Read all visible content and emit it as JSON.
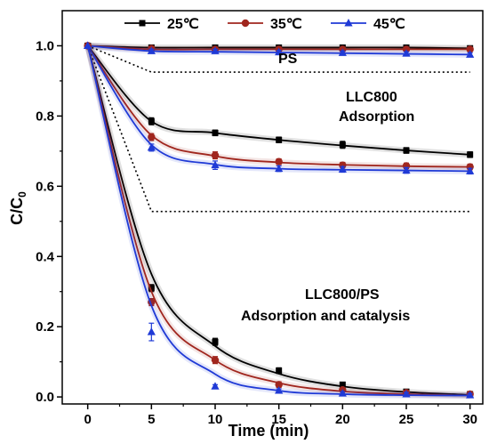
{
  "chart_data": {
    "type": "line",
    "xlabel": "Time (min)",
    "ylabel": "C/C",
    "ylabel_sub": "0",
    "xlim": [
      -2,
      31
    ],
    "ylim": [
      -0.02,
      1.1
    ],
    "xticks": [
      0,
      5,
      10,
      15,
      20,
      25,
      30
    ],
    "yticks": [
      0.0,
      0.2,
      0.4,
      0.6,
      0.8,
      1.0
    ],
    "xtick_labels": [
      "0",
      "5",
      "10",
      "15",
      "20",
      "25",
      "30"
    ],
    "ytick_labels": [
      "0.0",
      "0.2",
      "0.4",
      "0.6",
      "0.8",
      "1.0"
    ],
    "legend_position": "top",
    "annotations": {
      "ps": "PS",
      "adsorption_line1": "LLC800",
      "adsorption_line2": "Adsorption",
      "catalysis_line1": "LLC800/PS",
      "catalysis_line2": "Adsorption and catalysis"
    },
    "x": [
      0,
      5,
      10,
      15,
      20,
      25,
      30
    ],
    "series": [
      {
        "name": "25℃",
        "color": "#000000",
        "marker": "square",
        "group": "PS",
        "values": [
          1.0,
          0.995,
          0.995,
          0.995,
          0.995,
          0.995,
          0.993
        ],
        "fit": [
          1.0,
          0.995,
          0.995,
          0.995,
          0.995,
          0.995,
          0.993
        ],
        "errors": [
          0,
          0.005,
          0.005,
          0.005,
          0.005,
          0.005,
          0.005
        ]
      },
      {
        "name": "35℃",
        "color": "#a0261e",
        "marker": "circle",
        "group": "PS",
        "values": [
          1.0,
          0.992,
          0.99,
          0.99,
          0.99,
          0.99,
          0.99
        ],
        "fit": [
          1.0,
          0.99,
          0.99,
          0.99,
          0.99,
          0.99,
          0.99
        ],
        "errors": [
          0,
          0.005,
          0.005,
          0.005,
          0.005,
          0.005,
          0.005
        ]
      },
      {
        "name": "45℃",
        "color": "#1f3ad6",
        "marker": "triangle",
        "group": "PS",
        "values": [
          1.0,
          0.985,
          0.985,
          0.982,
          0.98,
          0.978,
          0.975
        ],
        "fit": [
          1.0,
          0.985,
          0.983,
          0.981,
          0.979,
          0.977,
          0.975
        ],
        "errors": [
          0,
          0.005,
          0.005,
          0.005,
          0.005,
          0.005,
          0.005
        ]
      },
      {
        "name": "25℃",
        "color": "#000000",
        "marker": "square",
        "group": "LLC800 Adsorption",
        "values": [
          1.0,
          0.785,
          0.752,
          0.732,
          0.718,
          0.702,
          0.69
        ],
        "fit": [
          1.0,
          0.785,
          0.752,
          0.732,
          0.716,
          0.702,
          0.69
        ],
        "errors": [
          0,
          0.01,
          0.008,
          0.008,
          0.01,
          0.008,
          0.008
        ]
      },
      {
        "name": "35℃",
        "color": "#a0261e",
        "marker": "circle",
        "group": "LLC800 Adsorption",
        "values": [
          1.0,
          0.74,
          0.688,
          0.67,
          0.66,
          0.658,
          0.655
        ],
        "fit": [
          1.0,
          0.745,
          0.686,
          0.668,
          0.661,
          0.657,
          0.655
        ],
        "errors": [
          0,
          0.01,
          0.01,
          0.008,
          0.008,
          0.008,
          0.008
        ]
      },
      {
        "name": "45℃",
        "color": "#1f3ad6",
        "marker": "triangle",
        "group": "LLC800 Adsorption",
        "values": [
          1.0,
          0.71,
          0.66,
          0.65,
          0.648,
          0.645,
          0.643
        ],
        "fit": [
          1.0,
          0.718,
          0.662,
          0.65,
          0.647,
          0.645,
          0.643
        ],
        "errors": [
          0,
          0.01,
          0.012,
          0.008,
          0.008,
          0.008,
          0.008
        ]
      },
      {
        "name": "25℃",
        "color": "#000000",
        "marker": "square",
        "group": "LLC800/PS Adsorption and catalysis",
        "values": [
          1.0,
          0.31,
          0.157,
          0.075,
          0.035,
          0.015,
          0.008
        ],
        "fit": [
          1.0,
          0.35,
          0.145,
          0.066,
          0.03,
          0.014,
          0.006
        ],
        "errors": [
          0,
          0.01,
          0.01,
          0.008,
          0.006,
          0.005,
          0.005
        ]
      },
      {
        "name": "35℃",
        "color": "#a0261e",
        "marker": "circle",
        "group": "LLC800/PS Adsorption and catalysis",
        "values": [
          1.0,
          0.27,
          0.105,
          0.035,
          0.02,
          0.012,
          0.008
        ],
        "fit": [
          1.0,
          0.3,
          0.105,
          0.04,
          0.016,
          0.008,
          0.004
        ],
        "errors": [
          0,
          0.01,
          0.01,
          0.008,
          0.006,
          0.005,
          0.005
        ]
      },
      {
        "name": "45℃",
        "color": "#1f3ad6",
        "marker": "triangle",
        "group": "LLC800/PS Adsorption and catalysis",
        "values": [
          1.0,
          0.185,
          0.03,
          0.018,
          0.01,
          0.008,
          0.005
        ],
        "fit": [
          1.0,
          0.26,
          0.065,
          0.018,
          0.008,
          0.005,
          0.004
        ],
        "errors": [
          0,
          0.025,
          0.005,
          0.005,
          0.005,
          0.005,
          0.005
        ]
      }
    ],
    "guides": {
      "style": "dotted",
      "color": "#000000",
      "paths": [
        [
          [
            0,
            1.0
          ],
          [
            5,
            0.925
          ],
          [
            30,
            0.925
          ]
        ],
        [
          [
            0,
            1.0
          ],
          [
            5,
            0.528
          ],
          [
            30,
            0.528
          ]
        ]
      ]
    }
  }
}
